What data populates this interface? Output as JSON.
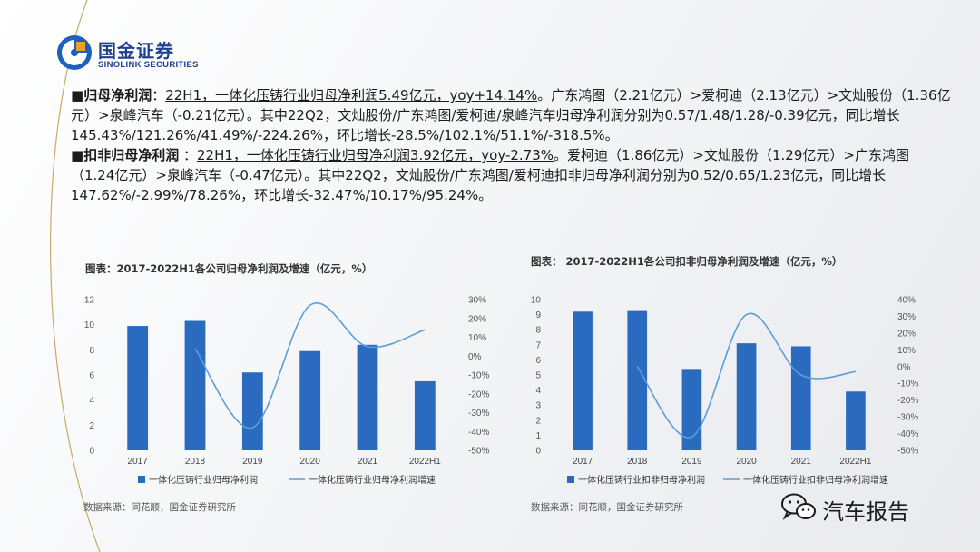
{
  "logo": {
    "cn": "国金证券",
    "en": "SINOLINK SECURITIES"
  },
  "bullets": [
    {
      "marker": "■",
      "heading": "归母净利润",
      "sep": "：",
      "underlined": "22H1，一体化压铸行业归母净利润5.49亿元，yoy+14.14%",
      "rest": "。广东鸿图（2.21亿元）>爱柯迪（2.13亿元）>文灿股份（1.36亿元）>泉峰汽车（-0.21亿元）。其中22Q2，文灿股份/广东鸿图/爱柯迪/泉峰汽车归母净利润分别为0.57/1.48/1.28/-0.39亿元，同比增长145.43%/121.26%/41.49%/-224.26%，环比增长-28.5%/102.1%/51.1%/-318.5%。"
    },
    {
      "marker": "■",
      "heading": "扣非归母净利润",
      "sep": " ：",
      "underlined": "22H1，一体化压铸行业归母净利润3.92亿元，yoy-2.73%",
      "rest": "。爱柯迪（1.86亿元）>文灿股份（1.29亿元）>广东鸿图（1.24亿元）>泉峰汽车（-0.47亿元）。其中22Q2，文灿股份/广东鸿图/爱柯迪扣非归母净利润分别为0.52/0.65/1.23亿元，同比增长147.62%/-2.99%/78.26%，环比增长-32.47%/10.17%/95.24%。"
    }
  ],
  "colors": {
    "bar": "#2a6bbf",
    "line": "#5a9fd8",
    "brand": "#1f3f8f",
    "gold": "#c9a96a"
  },
  "chart_data": [
    {
      "type": "bar",
      "title": "图表：2017-2022H1各公司归母净利润及增速（亿元，%）",
      "categories": [
        "2017",
        "2018",
        "2019",
        "2020",
        "2021",
        "2022H1"
      ],
      "ylim": [
        0,
        12
      ],
      "yticks": [
        0,
        2,
        4,
        6,
        8,
        10,
        12
      ],
      "y2lim": [
        -50,
        30
      ],
      "y2ticks": [
        "30%",
        "20%",
        "10%",
        "0%",
        "-10%",
        "-20%",
        "-30%",
        "-40%",
        "-50%"
      ],
      "series": [
        {
          "name": "一体化压铸行业归母净利润",
          "kind": "bar",
          "axis": "left",
          "values": [
            9.9,
            10.3,
            6.2,
            7.9,
            8.4,
            5.5
          ]
        },
        {
          "name": "一体化压铸行业归母净利润增速",
          "kind": "line",
          "axis": "right",
          "values": [
            null,
            4,
            -38,
            27,
            5,
            14
          ]
        }
      ],
      "source": "数据来源：同花顺，国金证券研究所"
    },
    {
      "type": "bar",
      "title": "图表： 2017-2022H1各公司扣非归母净利润及增速（亿元，%）",
      "categories": [
        "2017",
        "2018",
        "2019",
        "2020",
        "2021",
        "2022H1"
      ],
      "ylim": [
        0,
        10
      ],
      "yticks": [
        0,
        1,
        2,
        3,
        4,
        5,
        6,
        7,
        8,
        9,
        10
      ],
      "y2lim": [
        -50,
        40
      ],
      "y2ticks": [
        "40%",
        "30%",
        "20%",
        "10%",
        "0%",
        "-10%",
        "-20%",
        "-30%",
        "-40%",
        "-50%"
      ],
      "series": [
        {
          "name": "一体化压铸行业扣非归母净利润",
          "kind": "bar",
          "axis": "left",
          "values": [
            9.2,
            9.3,
            5.4,
            7.1,
            6.9,
            3.9
          ]
        },
        {
          "name": "一体化压铸行业扣非归母净利润增速",
          "kind": "line",
          "axis": "right",
          "values": [
            null,
            0,
            -42,
            31,
            -5,
            -3
          ]
        }
      ],
      "source": "数据来源：同花顺，国金证券研究所"
    }
  ],
  "watermark": {
    "text": "汽车报告",
    "icon": "wechat-icon"
  }
}
